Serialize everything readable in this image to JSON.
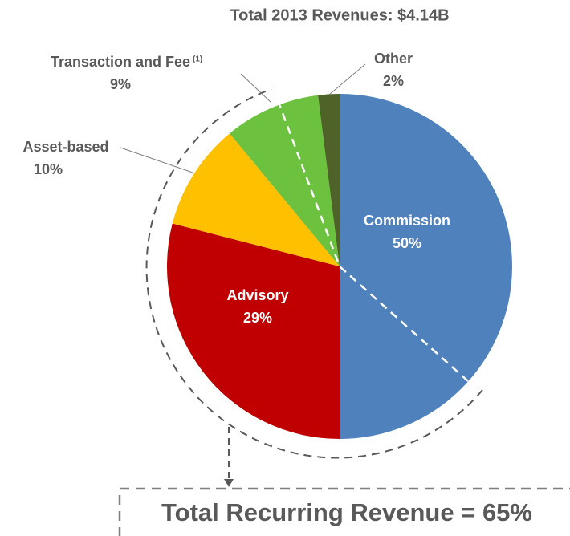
{
  "chart_data": {
    "type": "pie",
    "title": "Total 2013 Revenues: $4.14B",
    "categories": [
      "Commission",
      "Advisory",
      "Asset-based",
      "Transaction and Fee",
      "Other"
    ],
    "values": [
      50,
      29,
      10,
      9,
      2
    ],
    "value_labels": [
      "50%",
      "29%",
      "10%",
      "9%",
      "2%"
    ],
    "colors": [
      "#4f81bd",
      "#c00000",
      "#ffc000",
      "#6cc13f",
      "#4f6228"
    ],
    "footnote_marks": [
      null,
      null,
      null,
      "(1)",
      null
    ],
    "annotation": "Total Recurring Revenue = 65%"
  }
}
